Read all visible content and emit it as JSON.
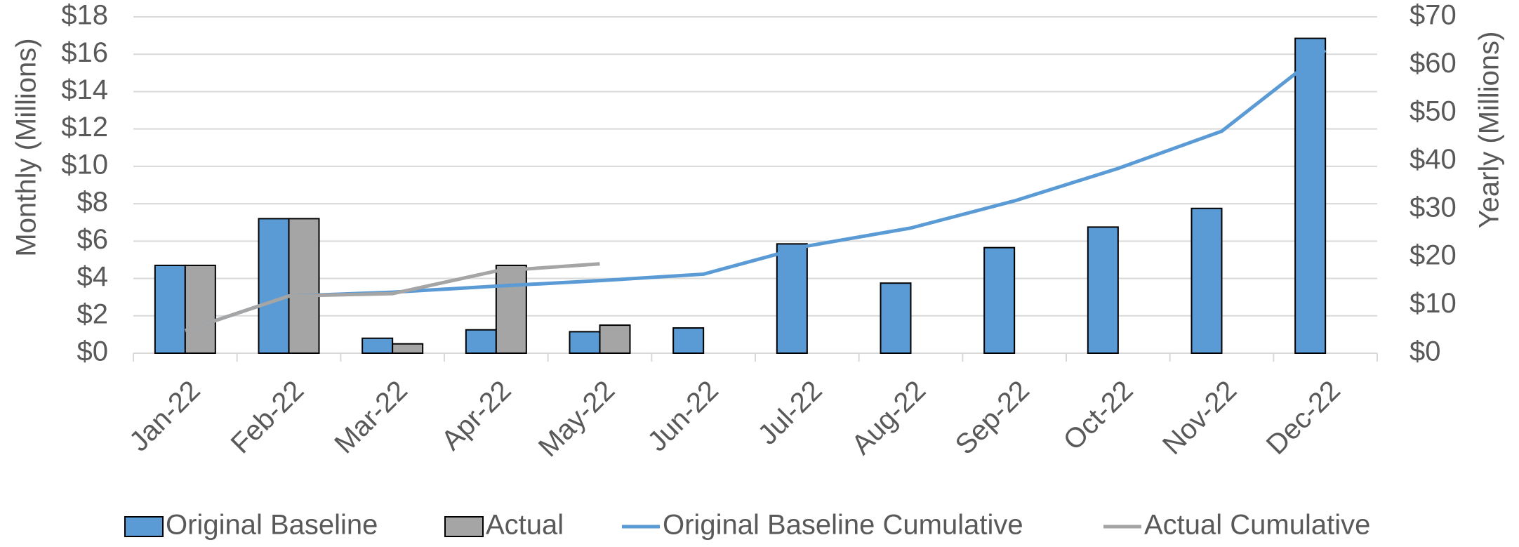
{
  "chart_data": {
    "type": "bar",
    "categories": [
      "Jan-22",
      "Feb-22",
      "Mar-22",
      "Apr-22",
      "May-22",
      "Jun-22",
      "Jul-22",
      "Aug-22",
      "Sep-22",
      "Oct-22",
      "Nov-22",
      "Dec-22"
    ],
    "series": [
      {
        "name": "Original Baseline",
        "type": "bar",
        "color": "#5b9bd5",
        "values": [
          4.7,
          7.2,
          0.8,
          1.25,
          1.15,
          1.35,
          5.85,
          3.75,
          5.65,
          6.75,
          7.75,
          16.85
        ]
      },
      {
        "name": "Actual",
        "type": "bar",
        "color": "#a5a5a5",
        "values": [
          4.7,
          7.2,
          0.5,
          4.7,
          1.5,
          null,
          null,
          null,
          null,
          null,
          null,
          null
        ]
      },
      {
        "name": "Original Baseline Cumulative",
        "type": "line",
        "axis": "y2",
        "color": "#5b9bd5",
        "values": [
          4.7,
          11.9,
          12.7,
          13.95,
          15.1,
          16.45,
          22.3,
          26.05,
          31.7,
          38.45,
          46.2,
          63.05
        ]
      },
      {
        "name": "Actual Cumulative",
        "type": "line",
        "axis": "y2",
        "color": "#a5a5a5",
        "values": [
          4.7,
          11.9,
          12.4,
          17.1,
          18.6,
          null,
          null,
          null,
          null,
          null,
          null,
          null
        ]
      }
    ],
    "y_label": "Monthly (Millions)",
    "y2_label": "Yearly (Millions)",
    "ylim": [
      0,
      18
    ],
    "yticks": [
      {
        "value": 0,
        "label": "$0"
      },
      {
        "value": 2,
        "label": "$2"
      },
      {
        "value": 4,
        "label": "$4"
      },
      {
        "value": 6,
        "label": "$6"
      },
      {
        "value": 8,
        "label": "$8"
      },
      {
        "value": 10,
        "label": "$10"
      },
      {
        "value": 12,
        "label": "$12"
      },
      {
        "value": 14,
        "label": "$14"
      },
      {
        "value": 16,
        "label": "$16"
      },
      {
        "value": 18,
        "label": "$18"
      }
    ],
    "y2lim": [
      0,
      70
    ],
    "y2ticks": [
      {
        "value": 0,
        "label": "$0"
      },
      {
        "value": 10,
        "label": "$10"
      },
      {
        "value": 20,
        "label": "$20"
      },
      {
        "value": 30,
        "label": "$30"
      },
      {
        "value": 40,
        "label": "$40"
      },
      {
        "value": 50,
        "label": "$50"
      },
      {
        "value": 60,
        "label": "$60"
      },
      {
        "value": 70,
        "label": "$70"
      }
    ],
    "grid": true,
    "legend": "bottom"
  }
}
